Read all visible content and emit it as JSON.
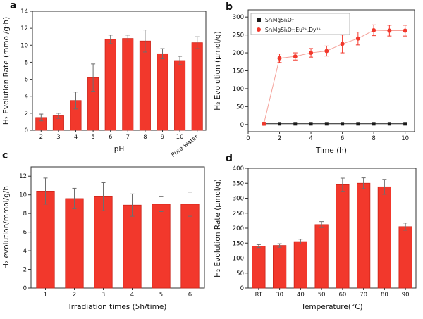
{
  "figure": {
    "background": "#ffffff",
    "panels": [
      {
        "label": "a"
      },
      {
        "label": "b"
      },
      {
        "label": "c"
      },
      {
        "label": "d"
      }
    ]
  },
  "colors": {
    "bar_fill": "#f2382c",
    "bar_edge": "#cc2318",
    "error_bar": "#6e6e6e",
    "axis": "#333333",
    "text": "#111111",
    "series_black": "#1a1a1a",
    "series_red": "#f2382c",
    "series_red_line": "#f5a199",
    "legend_border": "#999999"
  },
  "chart_data": [
    {
      "type": "bar",
      "panel": "a",
      "categories": [
        "2",
        "3",
        "4",
        "5",
        "6",
        "7",
        "8",
        "9",
        "10",
        "Pure water"
      ],
      "values": [
        1.5,
        1.7,
        3.5,
        6.2,
        10.7,
        10.8,
        10.5,
        9.0,
        8.2,
        10.3
      ],
      "errors": [
        0.4,
        0.3,
        1.0,
        1.6,
        0.5,
        0.4,
        1.3,
        0.6,
        0.5,
        0.7
      ],
      "title": "",
      "xlabel": "pH",
      "ylabel": "H₂ Evolution Rate (mmol/g·h)",
      "ylim": [
        0,
        14
      ],
      "yticks": [
        0,
        2,
        4,
        6,
        8,
        10,
        12,
        14
      ],
      "grid": false
    },
    {
      "type": "line",
      "panel": "b",
      "x": [
        1,
        2,
        3,
        4,
        5,
        6,
        7,
        8,
        9,
        10
      ],
      "series": [
        {
          "name": "Sr₂MgSi₂O₇",
          "marker": "square",
          "color": "#1a1a1a",
          "values": [
            2,
            2,
            2,
            2,
            2,
            2,
            2,
            2,
            2,
            2
          ],
          "errors": [
            0,
            0,
            0,
            0,
            0,
            0,
            0,
            0,
            0,
            0
          ]
        },
        {
          "name": "Sr₂MgSi₂O₇:Eu²⁺,Dy³⁺",
          "marker": "circle",
          "color": "#f2382c",
          "line_color": "#f5a199",
          "values": [
            2,
            185,
            190,
            200,
            205,
            225,
            240,
            263,
            262,
            262
          ],
          "errors": [
            4,
            12,
            10,
            12,
            14,
            25,
            18,
            15,
            15,
            15
          ]
        }
      ],
      "title": "",
      "xlabel": "Time (h)",
      "ylabel": "H₂ Evolution (μmol/g)",
      "xlim": [
        0,
        10.6
      ],
      "xticks": [
        0,
        2,
        4,
        6,
        8,
        10
      ],
      "ylim": [
        -20,
        320
      ],
      "yticks": [
        0,
        50,
        100,
        150,
        200,
        250,
        300
      ],
      "legend_position": "top-left",
      "grid": false
    },
    {
      "type": "bar",
      "panel": "c",
      "categories": [
        "1",
        "2",
        "3",
        "4",
        "5",
        "6"
      ],
      "values": [
        10.4,
        9.6,
        9.8,
        8.9,
        9.0,
        9.0
      ],
      "errors": [
        1.4,
        1.1,
        1.5,
        1.2,
        0.8,
        1.3
      ],
      "title": "",
      "xlabel": "Irradiation times (5h/time)",
      "ylabel": "H₂ evolution/mmol/g/h",
      "ylim": [
        0,
        13
      ],
      "yticks": [
        0,
        2,
        4,
        6,
        8,
        10,
        12
      ],
      "grid": false
    },
    {
      "type": "bar",
      "panel": "d",
      "categories": [
        "RT",
        "30",
        "40",
        "50",
        "60",
        "70",
        "80",
        "90"
      ],
      "values": [
        140,
        142,
        155,
        212,
        345,
        350,
        338,
        205
      ],
      "errors": [
        5,
        6,
        8,
        10,
        22,
        18,
        25,
        12
      ],
      "title": "",
      "xlabel": "Temperature(°C)",
      "ylabel": "H₂ Evolution Rate (μmol/g)",
      "ylim": [
        0,
        400
      ],
      "yticks": [
        0,
        50,
        100,
        150,
        200,
        250,
        300,
        350,
        400
      ],
      "grid": false
    }
  ]
}
